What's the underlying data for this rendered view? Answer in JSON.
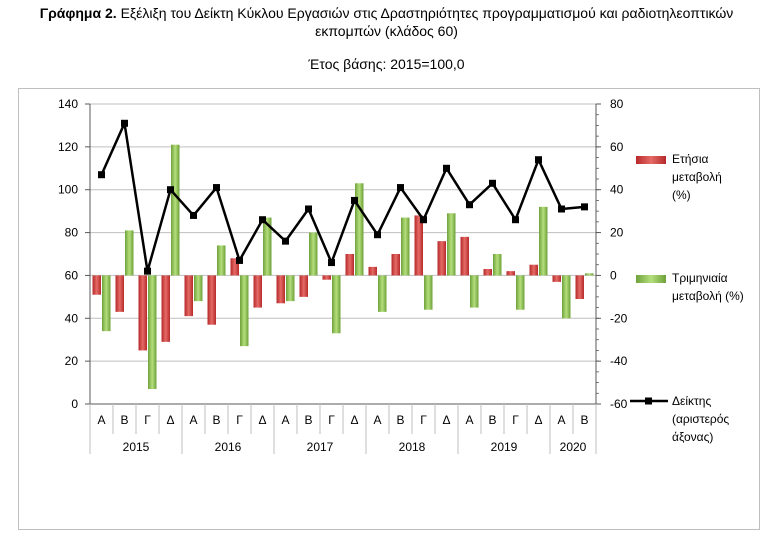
{
  "header": {
    "title_bold": "Γράφημα 2.",
    "title_rest": " Εξέλιξη του Δείκτη Κύκλου Εργασιών στις Δραστηριότητες προγραμματισμού και ραδιοτηλεοπτικών",
    "title_line2": "εκπομπών (κλάδος 60)",
    "subtitle": "Έτος βάσης: 2015=100,0"
  },
  "chart_data": {
    "type": "bar",
    "categories": [
      "Α",
      "Β",
      "Γ",
      "Δ",
      "Α",
      "Β",
      "Γ",
      "Δ",
      "Α",
      "Β",
      "Γ",
      "Δ",
      "Α",
      "Β",
      "Γ",
      "Δ",
      "Α",
      "Β",
      "Γ",
      "Δ",
      "Α",
      "Β"
    ],
    "years": [
      {
        "label": "2015",
        "quarters": 4
      },
      {
        "label": "2016",
        "quarters": 4
      },
      {
        "label": "2017",
        "quarters": 4
      },
      {
        "label": "2018",
        "quarters": 4
      },
      {
        "label": "2019",
        "quarters": 4
      },
      {
        "label": "2020",
        "quarters": 2
      }
    ],
    "left_axis": {
      "min": 0,
      "max": 140,
      "ticks": [
        0,
        20,
        40,
        60,
        80,
        100,
        120,
        140
      ]
    },
    "right_axis": {
      "min": -60,
      "max": 80,
      "ticks": [
        -60,
        -40,
        -20,
        0,
        20,
        40,
        60,
        80
      ]
    },
    "series": [
      {
        "name": "Ετήσια μεταβολή (%)",
        "type": "bar",
        "axis": "right",
        "color": "#d9534f",
        "values": [
          -9,
          -17,
          -35,
          -31,
          -19,
          -23,
          8,
          -15,
          -13,
          -10,
          -2,
          10,
          4,
          10,
          28,
          16,
          18,
          3,
          2,
          5,
          -3,
          -11
        ]
      },
      {
        "name": "Τριμηνιαία μεταβολή (%)",
        "type": "bar",
        "axis": "right",
        "color": "#9bc95f",
        "values": [
          -26,
          21,
          -53,
          61,
          -12,
          14,
          -33,
          27,
          -12,
          20,
          -27,
          43,
          -17,
          27,
          -16,
          29,
          -15,
          10,
          -16,
          32,
          -20,
          1
        ]
      },
      {
        "name": "Δείκτης (αριστερός άξονας)",
        "type": "line",
        "axis": "left",
        "color": "#000000",
        "values": [
          107,
          131,
          62,
          100,
          88,
          101,
          67,
          86,
          76,
          91,
          66,
          95,
          79,
          101,
          86,
          110,
          93,
          103,
          86,
          114,
          91,
          92
        ]
      }
    ],
    "legend_position": "right"
  }
}
